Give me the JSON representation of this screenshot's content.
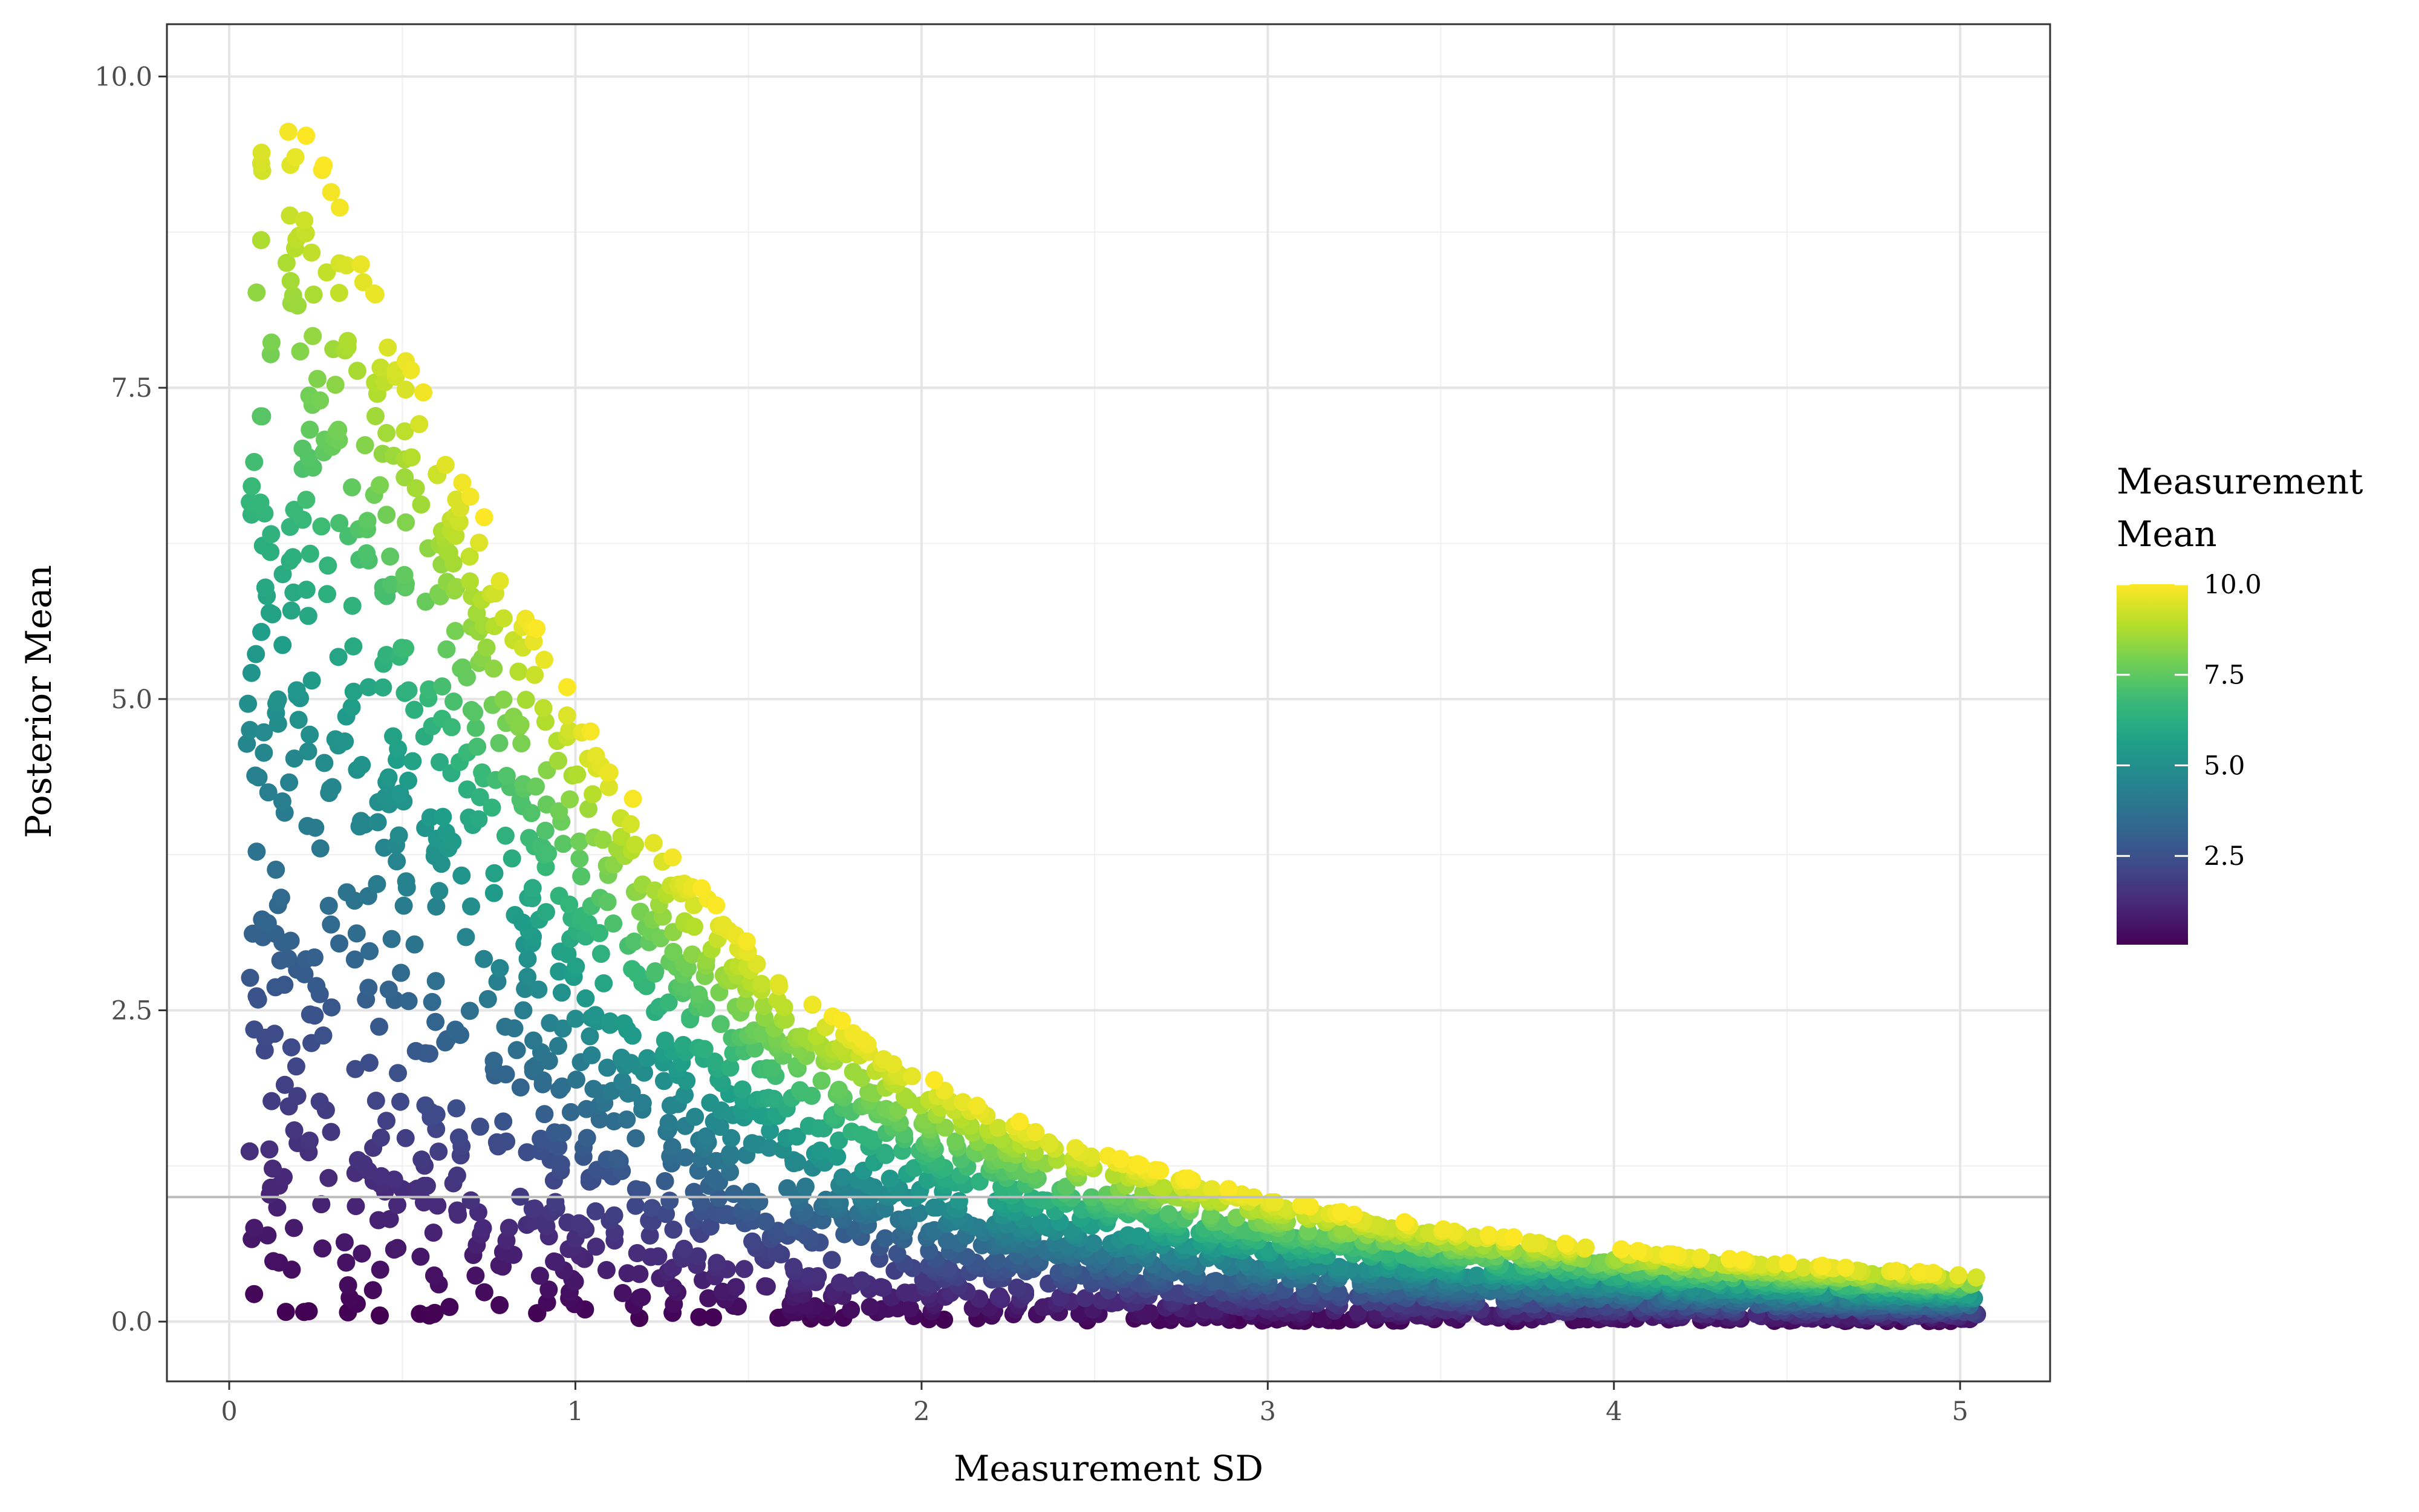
{
  "chart_data": {
    "type": "scatter",
    "xlabel": "Measurement SD",
    "ylabel": "Posterior Mean",
    "xlim": [
      -0.18,
      5.26
    ],
    "ylim": [
      -0.48,
      10.42
    ],
    "x_ticks": [
      {
        "value": 0,
        "label": "0"
      },
      {
        "value": 1,
        "label": "1"
      },
      {
        "value": 2,
        "label": "2"
      },
      {
        "value": 3,
        "label": "3"
      },
      {
        "value": 4,
        "label": "4"
      },
      {
        "value": 5,
        "label": "5"
      }
    ],
    "y_ticks": [
      {
        "value": 0,
        "label": "0.0"
      },
      {
        "value": 2.5,
        "label": "2.5"
      },
      {
        "value": 5,
        "label": "5.0"
      },
      {
        "value": 7.5,
        "label": "7.5"
      },
      {
        "value": 10,
        "label": "10.0"
      }
    ],
    "grid": true,
    "reference_line": {
      "y": 1.0,
      "color": "#bdbdbd"
    },
    "color_scale": {
      "name": "viridis",
      "variable": "Measurement Mean",
      "range": [
        0.05,
        10.0
      ],
      "stops": [
        "#440154",
        "#482878",
        "#3e4a89",
        "#31688e",
        "#26828e",
        "#1f9e89",
        "#35b779",
        "#6ece58",
        "#b5de2b",
        "#fde725"
      ]
    },
    "generating_function": "posterior mean = measurement mean / (1 + measurement SD^2); measurement SD in 0.05 to 5.05, measurement mean in 0.05 to 10.0",
    "sample_points": [
      {
        "x": 0.1,
        "y": 9.9,
        "mean": 10.0
      },
      {
        "x": 0.5,
        "y": 8.0,
        "mean": 10.0
      },
      {
        "x": 1.0,
        "y": 5.0,
        "mean": 10.0
      },
      {
        "x": 1.5,
        "y": 3.08,
        "mean": 10.0
      },
      {
        "x": 2.0,
        "y": 2.0,
        "mean": 10.0
      },
      {
        "x": 3.0,
        "y": 1.0,
        "mean": 10.0
      },
      {
        "x": 4.0,
        "y": 0.59,
        "mean": 10.0
      },
      {
        "x": 5.0,
        "y": 0.38,
        "mean": 10.0
      },
      {
        "x": 0.1,
        "y": 4.95,
        "mean": 5.0
      },
      {
        "x": 1.0,
        "y": 2.5,
        "mean": 5.0
      },
      {
        "x": 2.0,
        "y": 1.0,
        "mean": 5.0
      },
      {
        "x": 5.0,
        "y": 0.19,
        "mean": 5.0
      }
    ],
    "legend": {
      "title_line1": "Measurement",
      "title_line2": "Mean",
      "labels": [
        {
          "value": 10.0,
          "label": "10.0"
        },
        {
          "value": 7.5,
          "label": "7.5"
        },
        {
          "value": 5.0,
          "label": "5.0"
        },
        {
          "value": 2.5,
          "label": "2.5"
        }
      ],
      "position": "right"
    }
  }
}
